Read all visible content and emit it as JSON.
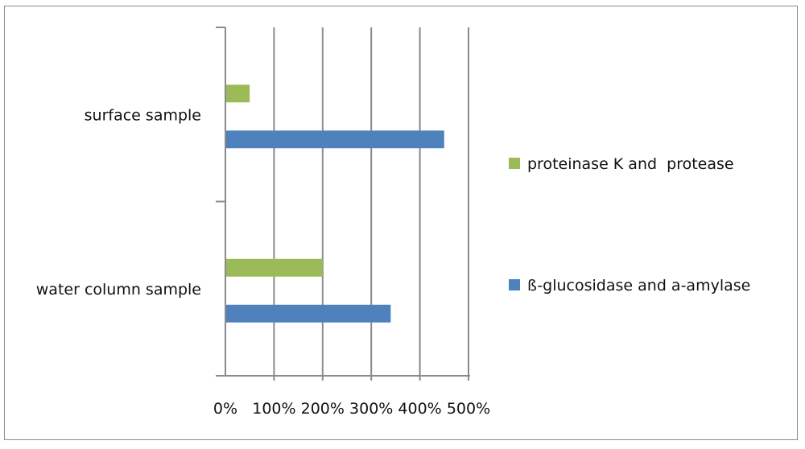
{
  "chart_data": {
    "type": "bar",
    "orientation": "horizontal",
    "title": "",
    "xlabel": "",
    "ylabel": "",
    "categories": [
      "water column sample",
      "surface sample"
    ],
    "series": [
      {
        "name": "ß-glucosidase and a-amylase",
        "values": [
          340,
          450
        ],
        "color": "#4f81bd"
      },
      {
        "name": "proteinase K and  protease",
        "values": [
          200,
          50
        ],
        "color": "#9bbb59"
      }
    ],
    "xlim": [
      0,
      500
    ],
    "xticks": [
      "0%",
      "100%",
      "200%",
      "300%",
      "400%",
      "500%"
    ],
    "grid": true,
    "legend": "right"
  }
}
